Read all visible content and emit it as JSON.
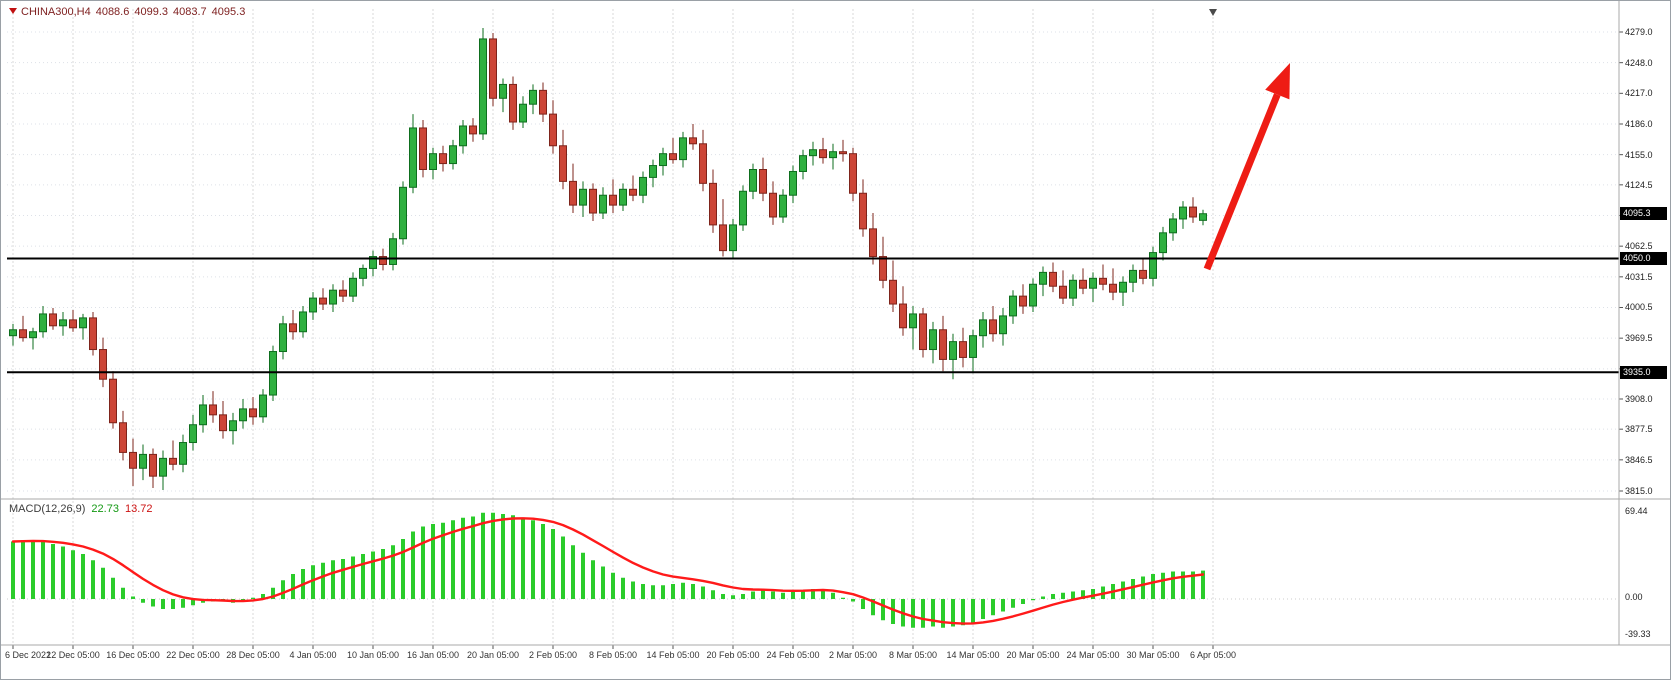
{
  "window": {
    "background": "#ffffff",
    "border_color": "#9aa0a6"
  },
  "chart_data": {
    "type": "candlestick",
    "title": "CHINA300,H4",
    "symbol_line": {
      "symbol": "CHINA300,H4",
      "open": "4088.6",
      "high": "4099.3",
      "low": "4083.7",
      "close": "4095.3"
    },
    "current_price_label": "4095.3",
    "price_axis": {
      "min": 3815.0,
      "max": 4279.0,
      "visible_ticks": [
        {
          "label": "4279.0",
          "price": 4279.0
        },
        {
          "label": "4248.0",
          "price": 4248.0
        },
        {
          "label": "4217.0",
          "price": 4217.0
        },
        {
          "label": "4186.0",
          "price": 4186.0
        },
        {
          "label": "4155.0",
          "price": 4155.0
        },
        {
          "label": "4124.5",
          "price": 4124.5
        },
        {
          "label": "4062.5",
          "price": 4062.5
        },
        {
          "label": "4031.5",
          "price": 4031.5
        },
        {
          "label": "4000.5",
          "price": 4000.5
        },
        {
          "label": "3969.5",
          "price": 3969.5
        },
        {
          "label": "3908.0",
          "price": 3908.0
        },
        {
          "label": "3877.5",
          "price": 3877.5
        },
        {
          "label": "3846.5",
          "price": 3846.5
        },
        {
          "label": "3815.0",
          "price": 3815.0
        }
      ],
      "grid_prices": [
        4279.0,
        4248.0,
        4217.0,
        4186.0,
        4155.0,
        4124.5,
        4093.5,
        4062.5,
        4031.5,
        4000.5,
        3969.5,
        3938.5,
        3908.0,
        3877.5,
        3846.5,
        3815.0
      ]
    },
    "hlines": [
      {
        "price": 4050.0,
        "label": "4050.0"
      },
      {
        "price": 3935.0,
        "label": "3935.0"
      }
    ],
    "time_labels": [
      "6 Dec 2022",
      "12 Dec 05:00",
      "16 Dec 05:00",
      "22 Dec 05:00",
      "28 Dec 05:00",
      "4 Jan 05:00",
      "10 Jan 05:00",
      "16 Jan 05:00",
      "20 Jan 05:00",
      "2 Feb 05:00",
      "8 Feb 05:00",
      "14 Feb 05:00",
      "20 Feb 05:00",
      "24 Feb 05:00",
      "2 Mar 05:00",
      "8 Mar 05:00",
      "14 Mar 05:00",
      "20 Mar 05:00",
      "24 Mar 05:00",
      "30 Mar 05:00",
      "6 Apr 05:00"
    ],
    "bars_per_label": 6,
    "candles_ohlc": [
      [
        3972,
        3984,
        3962,
        3978
      ],
      [
        3978,
        3992,
        3966,
        3970
      ],
      [
        3970,
        3980,
        3958,
        3976
      ],
      [
        3976,
        4002,
        3970,
        3994
      ],
      [
        3994,
        4000,
        3978,
        3982
      ],
      [
        3982,
        3996,
        3972,
        3988
      ],
      [
        3988,
        3998,
        3976,
        3980
      ],
      [
        3980,
        3994,
        3968,
        3990
      ],
      [
        3990,
        3996,
        3952,
        3958
      ],
      [
        3958,
        3970,
        3920,
        3928
      ],
      [
        3928,
        3936,
        3878,
        3884
      ],
      [
        3884,
        3896,
        3846,
        3854
      ],
      [
        3854,
        3868,
        3820,
        3838
      ],
      [
        3838,
        3862,
        3826,
        3852
      ],
      [
        3852,
        3858,
        3818,
        3830
      ],
      [
        3830,
        3856,
        3816,
        3848
      ],
      [
        3848,
        3866,
        3836,
        3842
      ],
      [
        3842,
        3872,
        3834,
        3864
      ],
      [
        3864,
        3892,
        3856,
        3882
      ],
      [
        3882,
        3912,
        3874,
        3902
      ],
      [
        3902,
        3916,
        3884,
        3892
      ],
      [
        3892,
        3906,
        3868,
        3876
      ],
      [
        3876,
        3894,
        3862,
        3886
      ],
      [
        3886,
        3908,
        3878,
        3898
      ],
      [
        3898,
        3910,
        3882,
        3890
      ],
      [
        3890,
        3918,
        3884,
        3912
      ],
      [
        3912,
        3962,
        3906,
        3956
      ],
      [
        3956,
        3992,
        3948,
        3984
      ],
      [
        3984,
        3998,
        3968,
        3976
      ],
      [
        3976,
        4002,
        3970,
        3996
      ],
      [
        3996,
        4016,
        3988,
        4010
      ],
      [
        4010,
        4020,
        3998,
        4004
      ],
      [
        4004,
        4024,
        3996,
        4018
      ],
      [
        4018,
        4028,
        4006,
        4012
      ],
      [
        4012,
        4036,
        4006,
        4030
      ],
      [
        4030,
        4044,
        4022,
        4040
      ],
      [
        4040,
        4058,
        4032,
        4052
      ],
      [
        4052,
        4060,
        4038,
        4044
      ],
      [
        4044,
        4076,
        4038,
        4070
      ],
      [
        4070,
        4128,
        4064,
        4122
      ],
      [
        4122,
        4196,
        4116,
        4182
      ],
      [
        4182,
        4190,
        4132,
        4140
      ],
      [
        4140,
        4162,
        4130,
        4156
      ],
      [
        4156,
        4164,
        4138,
        4146
      ],
      [
        4146,
        4170,
        4140,
        4164
      ],
      [
        4164,
        4190,
        4156,
        4184
      ],
      [
        4184,
        4192,
        4168,
        4176
      ],
      [
        4176,
        4283,
        4170,
        4272
      ],
      [
        4272,
        4278,
        4204,
        4212
      ],
      [
        4212,
        4232,
        4198,
        4226
      ],
      [
        4226,
        4234,
        4180,
        4188
      ],
      [
        4188,
        4214,
        4182,
        4206
      ],
      [
        4206,
        4226,
        4196,
        4220
      ],
      [
        4220,
        4228,
        4188,
        4196
      ],
      [
        4196,
        4210,
        4156,
        4164
      ],
      [
        4164,
        4180,
        4120,
        4128
      ],
      [
        4128,
        4146,
        4096,
        4104
      ],
      [
        4104,
        4128,
        4092,
        4120
      ],
      [
        4120,
        4126,
        4088,
        4096
      ],
      [
        4096,
        4122,
        4090,
        4114
      ],
      [
        4114,
        4130,
        4096,
        4104
      ],
      [
        4104,
        4126,
        4098,
        4120
      ],
      [
        4120,
        4134,
        4108,
        4114
      ],
      [
        4114,
        4138,
        4106,
        4132
      ],
      [
        4132,
        4150,
        4122,
        4144
      ],
      [
        4144,
        4162,
        4134,
        4156
      ],
      [
        4156,
        4172,
        4146,
        4150
      ],
      [
        4150,
        4178,
        4142,
        4172
      ],
      [
        4172,
        4186,
        4160,
        4166
      ],
      [
        4166,
        4180,
        4118,
        4126
      ],
      [
        4126,
        4140,
        4076,
        4084
      ],
      [
        4084,
        4110,
        4052,
        4058
      ],
      [
        4058,
        4090,
        4050,
        4084
      ],
      [
        4084,
        4124,
        4078,
        4118
      ],
      [
        4118,
        4146,
        4110,
        4140
      ],
      [
        4140,
        4152,
        4108,
        4116
      ],
      [
        4116,
        4128,
        4084,
        4092
      ],
      [
        4092,
        4120,
        4086,
        4114
      ],
      [
        4114,
        4144,
        4106,
        4138
      ],
      [
        4138,
        4160,
        4130,
        4154
      ],
      [
        4154,
        4168,
        4144,
        4160
      ],
      [
        4160,
        4172,
        4146,
        4152
      ],
      [
        4152,
        4166,
        4140,
        4158
      ],
      [
        4158,
        4170,
        4148,
        4156
      ],
      [
        4156,
        4162,
        4108,
        4116
      ],
      [
        4116,
        4130,
        4072,
        4080
      ],
      [
        4080,
        4096,
        4044,
        4052
      ],
      [
        4052,
        4072,
        4020,
        4028
      ],
      [
        4028,
        4048,
        3996,
        4004
      ],
      [
        4004,
        4022,
        3972,
        3980
      ],
      [
        3980,
        4002,
        3958,
        3994
      ],
      [
        3994,
        4000,
        3950,
        3958
      ],
      [
        3958,
        3986,
        3944,
        3978
      ],
      [
        3978,
        3992,
        3936,
        3948
      ],
      [
        3948,
        3974,
        3928,
        3966
      ],
      [
        3966,
        3980,
        3940,
        3950
      ],
      [
        3950,
        3978,
        3934,
        3972
      ],
      [
        3972,
        3996,
        3960,
        3988
      ],
      [
        3988,
        4002,
        3966,
        3974
      ],
      [
        3974,
        4000,
        3962,
        3992
      ],
      [
        3992,
        4018,
        3984,
        4012
      ],
      [
        4012,
        4024,
        3994,
        4002
      ],
      [
        4002,
        4030,
        3996,
        4024
      ],
      [
        4024,
        4042,
        4012,
        4036
      ],
      [
        4036,
        4046,
        4016,
        4022
      ],
      [
        4022,
        4038,
        4004,
        4010
      ],
      [
        4010,
        4034,
        4002,
        4028
      ],
      [
        4028,
        4040,
        4014,
        4020
      ],
      [
        4020,
        4036,
        4006,
        4030
      ],
      [
        4030,
        4044,
        4018,
        4024
      ],
      [
        4024,
        4040,
        4008,
        4016
      ],
      [
        4016,
        4032,
        4002,
        4026
      ],
      [
        4026,
        4044,
        4016,
        4038
      ],
      [
        4038,
        4050,
        4024,
        4030
      ],
      [
        4030,
        4062,
        4022,
        4056
      ],
      [
        4056,
        4082,
        4048,
        4076
      ],
      [
        4076,
        4096,
        4068,
        4090
      ],
      [
        4090,
        4108,
        4080,
        4102
      ],
      [
        4102,
        4112,
        4086,
        4092
      ],
      [
        4088.6,
        4099.3,
        4083.7,
        4095.3
      ]
    ],
    "macd": {
      "name": "MACD(12,26,9)",
      "value_main": "22.73",
      "value_signal": "13.72",
      "axis_ticks": [
        "69.44",
        "0.00",
        "-39.33"
      ],
      "histogram": [
        46,
        47,
        47,
        46,
        44,
        42,
        39,
        36,
        31,
        25,
        17,
        9,
        2,
        -3,
        -6,
        -8,
        -8,
        -7,
        -5,
        -3,
        -2,
        -2,
        -3,
        -2,
        1,
        4,
        9,
        15,
        20,
        24,
        27,
        29,
        31,
        32,
        34,
        36,
        38,
        40,
        43,
        48,
        54,
        58,
        60,
        61,
        63,
        65,
        66,
        69,
        69,
        68,
        67,
        65,
        63,
        60,
        56,
        50,
        43,
        37,
        31,
        26,
        21,
        17,
        14,
        12,
        11,
        11,
        12,
        13,
        12,
        10,
        7,
        4,
        3,
        4,
        6,
        7,
        6,
        5,
        6,
        7,
        8,
        8,
        5,
        1,
        -2,
        -8,
        -13,
        -17,
        -20,
        -22,
        -23,
        -23,
        -22,
        -23,
        -22,
        -21,
        -19,
        -16,
        -13,
        -10,
        -7,
        -4,
        -1,
        2,
        4,
        5,
        6,
        7,
        8,
        10,
        12,
        14,
        16,
        18,
        20,
        21,
        22,
        22,
        22,
        22.73
      ]
    },
    "annotations": {
      "arrow": {
        "tail": [
          1206,
          268
        ],
        "tip": [
          1289,
          62
        ],
        "color": "#ee1c14"
      }
    },
    "colors": {
      "bull_fill": "#2fb040",
      "bull_stroke": "#0e6e1e",
      "bear_fill": "#cc4637",
      "bear_stroke": "#7e241b",
      "hist": "#2bcc2b",
      "signal": "#ff1a1a",
      "hline": "#000000",
      "badge_bg": "#000000",
      "badge_text": "#ffffff",
      "grid_h": "#dde1e8",
      "grid_v": "#d8d8d8",
      "separator": "#a8a8a8",
      "quote_text": "#7d1e1e",
      "arrow": "#ee1c14"
    }
  }
}
